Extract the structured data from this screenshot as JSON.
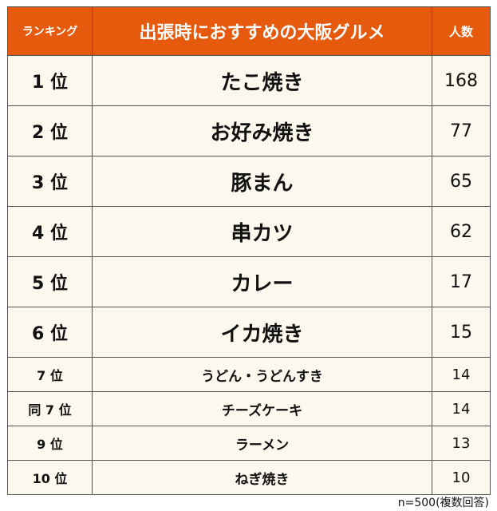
{
  "header": {
    "rank": "ランキング",
    "title": "出張時におすすめの大阪グルメ",
    "count": "人数"
  },
  "rows": [
    {
      "rank": "1 位",
      "name": "たこ焼き",
      "count": "168"
    },
    {
      "rank": "2 位",
      "name": "お好み焼き",
      "count": "77"
    },
    {
      "rank": "3 位",
      "name": "豚まん",
      "count": "65"
    },
    {
      "rank": "4 位",
      "name": "串カツ",
      "count": "62"
    },
    {
      "rank": "5 位",
      "name": "カレー",
      "count": "17"
    },
    {
      "rank": "6 位",
      "name": "イカ焼き",
      "count": "15"
    },
    {
      "rank": "7 位",
      "name": "うどん・うどんすき",
      "count": "14"
    },
    {
      "rank": "同 7 位",
      "name": "チーズケーキ",
      "count": "14"
    },
    {
      "rank": "9 位",
      "name": "ラーメン",
      "count": "13"
    },
    {
      "rank": "10 位",
      "name": "ねぎ焼き",
      "count": "10"
    }
  ],
  "footnote": "n=500(複数回答)",
  "colors": {
    "header": "#e55a0c",
    "row_bg": "#fdf8ee"
  }
}
